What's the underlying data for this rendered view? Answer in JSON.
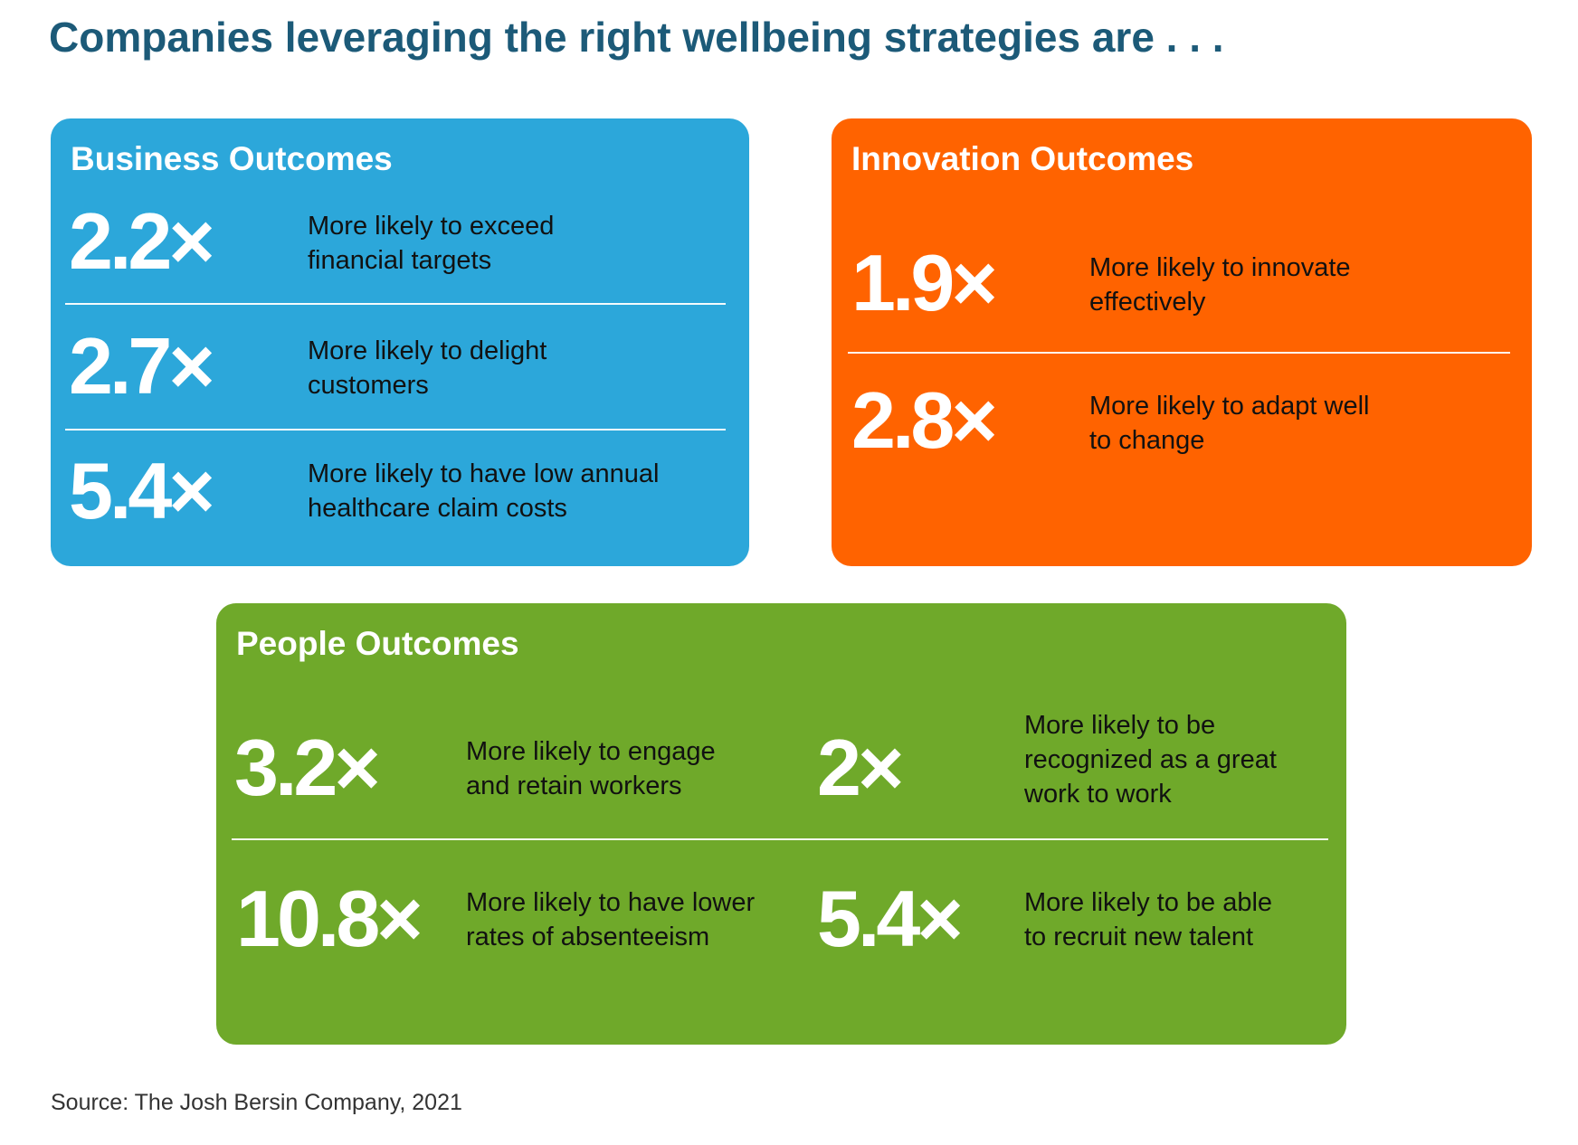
{
  "page": {
    "title": "Companies leveraging the right wellbeing strategies are . . .",
    "source": "Source: The Josh Bersin Company, 2021"
  },
  "colors": {
    "title": "#1c5a78",
    "business": "#2ca7da",
    "innovation": "#ff6300",
    "people": "#6fa92a"
  },
  "business": {
    "title": "Business Outcomes",
    "items": [
      {
        "stat": "2.2×",
        "line1": "More likely to exceed",
        "line2": "financial targets"
      },
      {
        "stat": "2.7×",
        "line1": "More likely to delight",
        "line2": "customers"
      },
      {
        "stat": "5.4×",
        "line1": "More likely to have low annual",
        "line2": "healthcare claim costs"
      }
    ]
  },
  "innovation": {
    "title": "Innovation Outcomes",
    "items": [
      {
        "stat": "1.9×",
        "line1": "More likely to innovate",
        "line2": "effectively"
      },
      {
        "stat": "2.8×",
        "line1": "More likely to adapt well",
        "line2": "to change"
      }
    ]
  },
  "people": {
    "title": "People Outcomes",
    "items": [
      {
        "stat": "3.2×",
        "line1": "More likely to engage",
        "line2": "and retain workers"
      },
      {
        "stat": "2×",
        "line1": "More likely to be",
        "line2": "recognized as a great",
        "line3": "work to work"
      },
      {
        "stat": "10.8×",
        "line1": "More likely to have lower",
        "line2": "rates of absenteeism"
      },
      {
        "stat": "5.4×",
        "line1": "More likely to be able",
        "line2": "to recruit new talent"
      }
    ]
  }
}
